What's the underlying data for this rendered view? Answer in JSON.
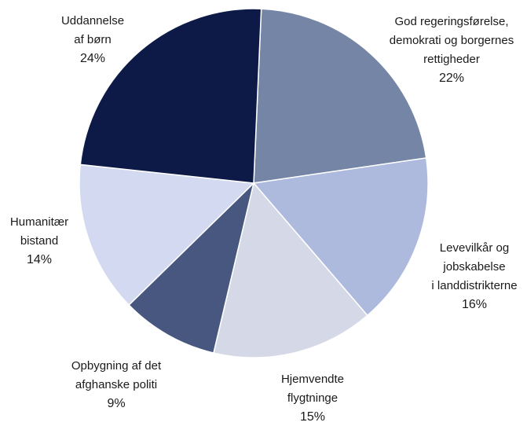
{
  "chart_data": {
    "type": "pie",
    "title": "",
    "slices": [
      {
        "name": "God regeringsførelse, demokrati og borgernes rettigheder",
        "label_lines": [
          "God  regeringsførelse,",
          "demokrati og borgernes",
          "rettigheder"
        ],
        "pct_label": "22%",
        "value": 22,
        "color": "#7585a6"
      },
      {
        "name": "Levevilkår og jobskabelse i landdistrikterne",
        "label_lines": [
          "Levevilkår og",
          "jobskabelse",
          "i landdistrikterne"
        ],
        "pct_label": "16%",
        "value": 16,
        "color": "#adbade"
      },
      {
        "name": "Hjemvendte flygtninge",
        "label_lines": [
          "Hjemvendte",
          "flygtninge"
        ],
        "pct_label": "15%",
        "value": 15,
        "color": "#d5d8e6"
      },
      {
        "name": "Opbygning af det afghanske politi",
        "label_lines": [
          "Opbygning af det",
          "afghanske politi"
        ],
        "pct_label": "9%",
        "value": 9,
        "color": "#47577f"
      },
      {
        "name": "Humanitær bistand",
        "label_lines": [
          "Humanitær",
          "bistand"
        ],
        "pct_label": "14%",
        "value": 14,
        "color": "#d2d9f0"
      },
      {
        "name": "Uddannelse af børn",
        "label_lines": [
          "Uddannelse",
          "af børn"
        ],
        "pct_label": "24%",
        "value": 24,
        "color": "#0d1a47"
      }
    ],
    "legend": "none"
  }
}
